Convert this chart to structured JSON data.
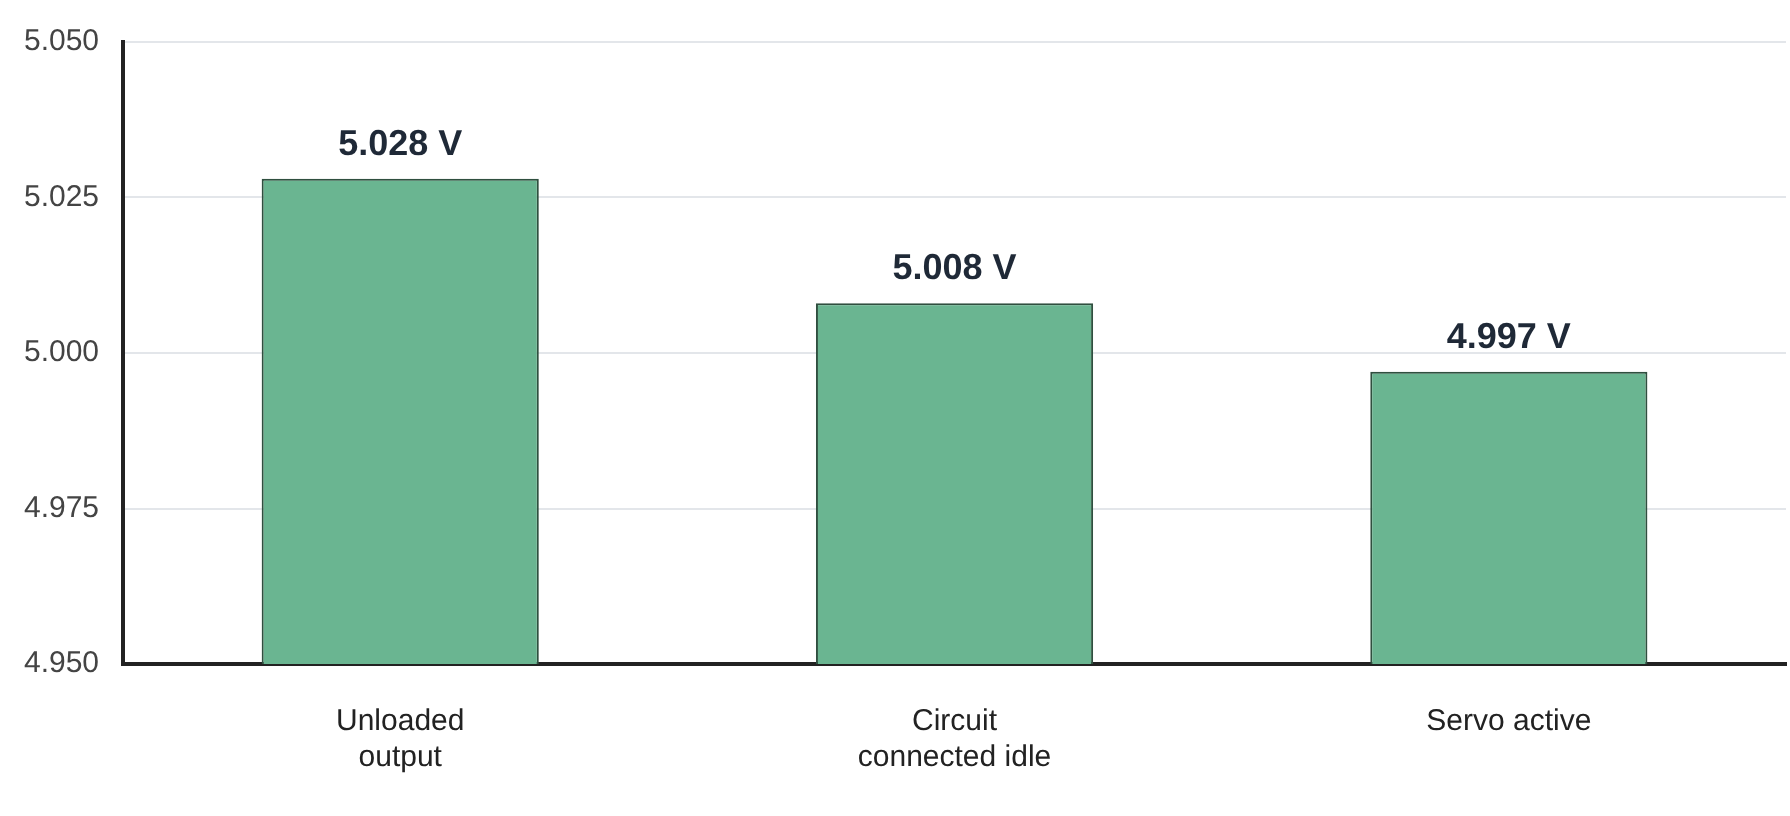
{
  "chart_data": {
    "type": "bar",
    "categories": [
      "Unloaded output",
      "Circuit connected idle",
      "Servo active"
    ],
    "values": [
      5.028,
      5.008,
      4.997
    ],
    "color": "#6ab591",
    "value_labels": [
      "5.028 V",
      "5.008 V",
      "4.997 V"
    ],
    "ylim": [
      4.95,
      5.05
    ],
    "yticks": [
      {
        "value": 4.95,
        "label": "4.950"
      },
      {
        "value": 4.975,
        "label": "4.975"
      },
      {
        "value": 5.0,
        "label": "5.000"
      },
      {
        "value": 5.025,
        "label": "5.025"
      },
      {
        "value": 5.05,
        "label": "5.050"
      }
    ],
    "grid": "y"
  }
}
